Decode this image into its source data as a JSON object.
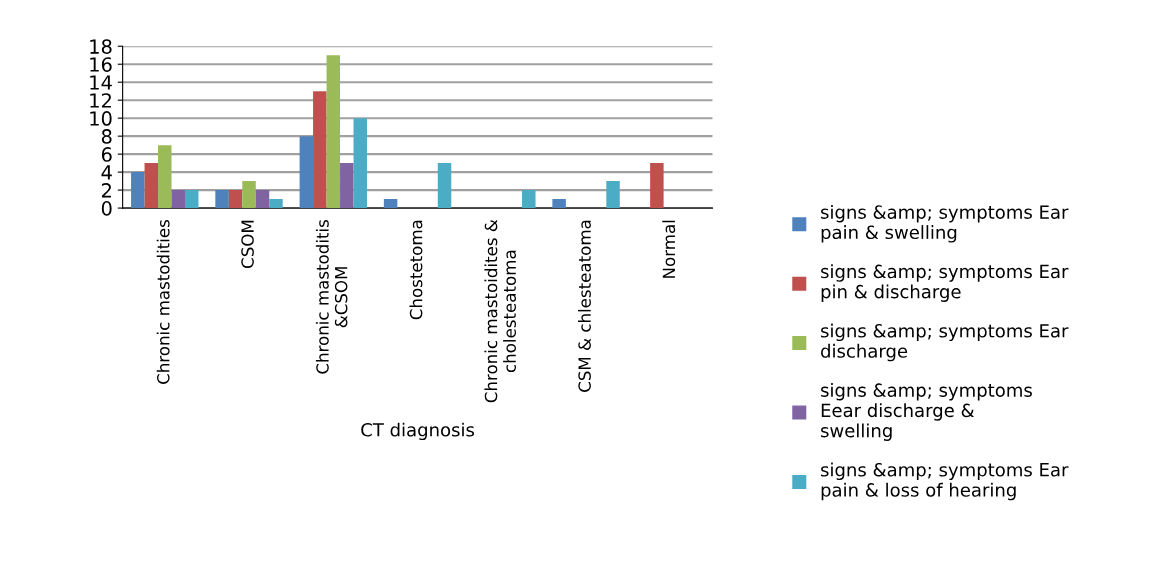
{
  "chart_data": {
    "type": "bar",
    "xlabel": "CT diagnosis",
    "categories": [
      "Chronic mastodities",
      "CSOM",
      "Chronic mastoditis\n&CSOM",
      "Chostetoma",
      "Chronic mastoidites &\ncholesteatoma",
      "CSM & chlesteatoma",
      "Normal"
    ],
    "series": [
      {
        "name": "signs &amp; symptoms Ear pain & swelling",
        "color": "#4f81bd",
        "values": [
          4,
          2,
          8,
          1,
          0,
          1,
          0
        ]
      },
      {
        "name": "signs &amp; symptoms Ear pin & discharge",
        "color": "#c0504d",
        "values": [
          5,
          2,
          13,
          0,
          0,
          0,
          5
        ]
      },
      {
        "name": "signs &amp; symptoms Ear discharge",
        "color": "#9bbb59",
        "values": [
          7,
          3,
          17,
          0,
          0,
          0,
          0
        ]
      },
      {
        "name": "signs &amp; symptoms Eear discharge & swelling",
        "color": "#8064a2",
        "values": [
          2,
          2,
          5,
          0,
          0,
          0,
          0
        ]
      },
      {
        "name": "signs &amp; symptoms Ear pain & loss of hearing",
        "color": "#4bacc6",
        "values": [
          2,
          1,
          10,
          5,
          2,
          3,
          0
        ]
      }
    ],
    "ylim": [
      0,
      18
    ],
    "yticks": [
      0,
      2,
      4,
      6,
      8,
      10,
      12,
      14,
      16,
      18
    ],
    "grid": "y",
    "legend": "right"
  }
}
